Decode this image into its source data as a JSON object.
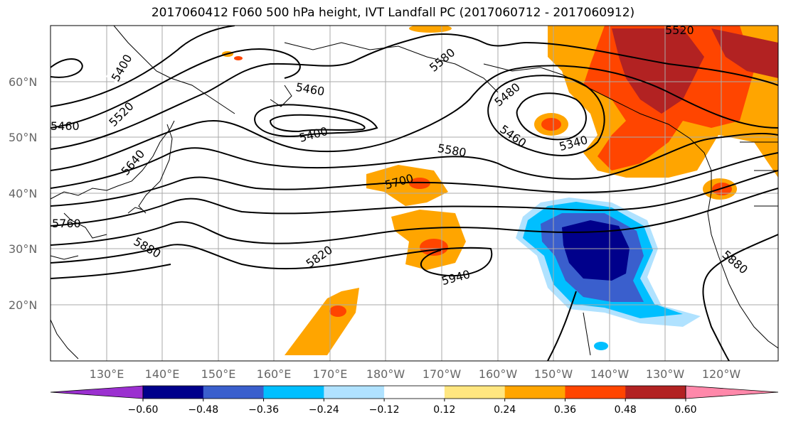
{
  "title": "2017060412 F060 500 hPa height, IVT Landfall PC (2017060712 - 2017060912)",
  "lat_labels": [
    "60°N",
    "50°N",
    "40°N",
    "30°N",
    "20°N"
  ],
  "lon_labels": [
    "130°E",
    "140°E",
    "150°E",
    "160°E",
    "170°E",
    "180°W",
    "170°W",
    "160°W",
    "150°W",
    "140°W",
    "130°W",
    "120°W"
  ],
  "contour_labels": [
    "5400",
    "5520",
    "5640",
    "5760",
    "5880",
    "5460",
    "5400",
    "5580",
    "5700",
    "5820",
    "5940",
    "5480",
    "5460",
    "5340",
    "5580",
    "5520",
    "5880",
    "5460"
  ],
  "colorbar": {
    "ticks": [
      "−0.60",
      "−0.48",
      "−0.36",
      "−0.24",
      "−0.12",
      "0.12",
      "0.24",
      "0.36",
      "0.48",
      "0.60"
    ],
    "colors": [
      "#9b30d0",
      "#00008b",
      "#3a5fcd",
      "#00bfff",
      "#b0e2ff",
      "#ffffff",
      "#ffe680",
      "#ffa500",
      "#ff4500",
      "#b22222",
      "#ff88aa"
    ]
  }
}
